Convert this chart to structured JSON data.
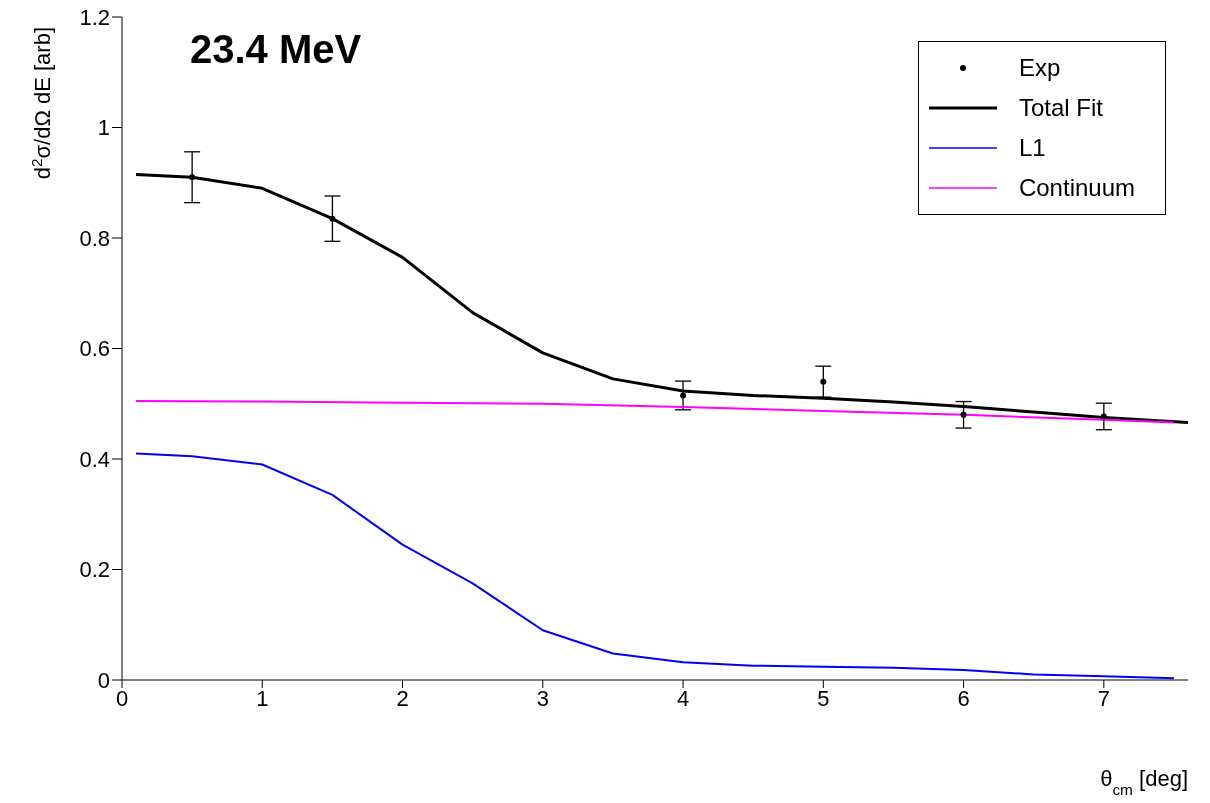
{
  "chart_data": {
    "type": "line",
    "title": "23.4 MeV",
    "xlabel": "θ$_{cm}$ [deg]",
    "ylabel": "d$^{2}$σ/dΩ dE [arb]",
    "xlim": [
      0,
      7.6
    ],
    "xticks": [
      0,
      1,
      2,
      3,
      4,
      5,
      6,
      7
    ],
    "ylim": [
      0,
      1.2
    ],
    "yticks": [
      0,
      0.2,
      0.4,
      0.6,
      0.8,
      1,
      1.2
    ],
    "grid": false,
    "legend": "top right",
    "series": [
      {
        "name": "Exp",
        "type": "scatter",
        "color": "#000000",
        "marker": "circle",
        "x": [
          0.5,
          1.5,
          4,
          5,
          6,
          7
        ],
        "values": [
          0.91,
          0.835,
          0.515,
          0.54,
          0.48,
          0.477
        ],
        "errors": [
          0.046,
          0.041,
          0.026,
          0.028,
          0.024,
          0.024
        ]
      },
      {
        "name": "Total Fit",
        "color": "#000000",
        "marker": "none",
        "x": [
          0.1,
          0.5,
          1,
          1.5,
          2,
          2.5,
          3,
          3.5,
          4,
          4.5,
          5,
          5.5,
          6,
          6.5,
          7,
          7.6
        ],
        "values": [
          0.915,
          0.91,
          0.89,
          0.835,
          0.765,
          0.665,
          0.592,
          0.545,
          0.523,
          0.515,
          0.51,
          0.503,
          0.495,
          0.485,
          0.475,
          0.466
        ]
      },
      {
        "name": "L1",
        "color": "#0000ff",
        "marker": "none",
        "x": [
          0.1,
          0.5,
          1,
          1.5,
          2,
          2.5,
          3,
          3.5,
          4,
          4.5,
          5,
          5.5,
          6,
          6.5,
          7,
          7.5
        ],
        "values": [
          0.41,
          0.405,
          0.39,
          0.335,
          0.245,
          0.175,
          0.09,
          0.048,
          0.032,
          0.026,
          0.024,
          0.022,
          0.018,
          0.01,
          0.007,
          0.003
        ]
      },
      {
        "name": "Continuum",
        "color": "#ff00ff",
        "marker": "none",
        "x": [
          0.1,
          1,
          2,
          3,
          4,
          5,
          6,
          7,
          7.5
        ],
        "values": [
          0.505,
          0.504,
          0.502,
          0.5,
          0.494,
          0.487,
          0.48,
          0.471,
          0.466
        ]
      }
    ]
  }
}
